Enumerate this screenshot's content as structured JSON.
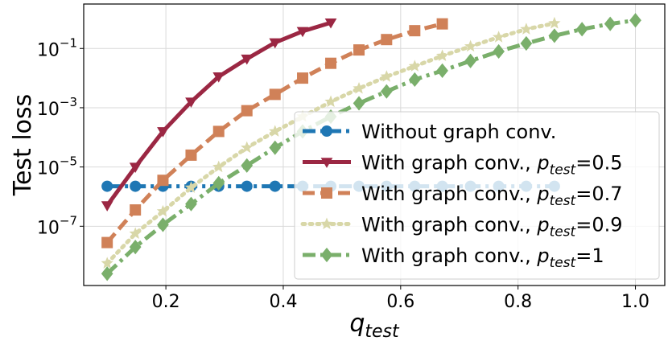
{
  "chart_data": {
    "type": "line",
    "title": "",
    "xlabel_base": "q",
    "xlabel_sub": "test",
    "ylabel": "Test loss",
    "xlim": [
      0.06,
      1.05
    ],
    "ylim_log10": [
      -9.0,
      0.5
    ],
    "yscale": "log",
    "grid": true,
    "legend_position": "lower-right",
    "x_ticks": [
      {
        "value": 0.2,
        "label": "0.2"
      },
      {
        "value": 0.4,
        "label": "0.4"
      },
      {
        "value": 0.6,
        "label": "0.6"
      },
      {
        "value": 0.8,
        "label": "0.8"
      },
      {
        "value": 1.0,
        "label": "1.0"
      }
    ],
    "y_ticks": [
      {
        "exp": -1,
        "base": "10",
        "sup": "−1"
      },
      {
        "exp": -3,
        "base": "10",
        "sup": "−3"
      },
      {
        "exp": -5,
        "base": "10",
        "sup": "−5"
      },
      {
        "exp": -7,
        "base": "10",
        "sup": "−7"
      }
    ],
    "series": [
      {
        "name": "Without graph conv.",
        "legend_prefix": "Without graph conv.",
        "legend_sub": "",
        "legend_suffix": "",
        "color": "#1f77b4",
        "dash": "dashdot",
        "marker": "circle",
        "x": [
          0.1,
          0.148,
          0.195,
          0.243,
          0.29,
          0.338,
          0.386,
          0.433,
          0.481,
          0.529,
          0.576,
          0.624,
          0.671,
          0.719,
          0.767,
          0.814,
          0.862
        ],
        "log10_y": [
          -5.65,
          -5.65,
          -5.65,
          -5.65,
          -5.65,
          -5.65,
          -5.65,
          -5.65,
          -5.65,
          -5.65,
          -5.65,
          -5.65,
          -5.65,
          -5.65,
          -5.65,
          -5.65,
          -5.65
        ]
      },
      {
        "name": "With graph conv., p_test=0.5",
        "legend_prefix": "With graph conv., p",
        "legend_sub": "test",
        "legend_suffix": "=0.5",
        "color": "#9b2743",
        "dash": "solid",
        "marker": "triangle-down",
        "x": [
          0.1,
          0.148,
          0.195,
          0.243,
          0.29,
          0.338,
          0.386,
          0.433,
          0.481
        ],
        "log10_y": [
          -6.3,
          -5.0,
          -3.8,
          -2.8,
          -1.95,
          -1.35,
          -0.8,
          -0.42,
          -0.13
        ]
      },
      {
        "name": "With graph conv., p_test=0.7",
        "legend_prefix": "With graph conv., p",
        "legend_sub": "test",
        "legend_suffix": "=0.7",
        "color": "#d08158",
        "dash": "dashed",
        "marker": "square",
        "x": [
          0.1,
          0.148,
          0.195,
          0.243,
          0.29,
          0.338,
          0.386,
          0.433,
          0.481,
          0.529,
          0.576,
          0.624,
          0.671
        ],
        "log10_y": [
          -7.55,
          -6.45,
          -5.45,
          -4.6,
          -3.8,
          -3.1,
          -2.55,
          -2.0,
          -1.5,
          -1.05,
          -0.7,
          -0.4,
          -0.17
        ]
      },
      {
        "name": "With graph conv., p_test=0.9",
        "legend_prefix": "With graph conv., p",
        "legend_sub": "test",
        "legend_suffix": "=0.9",
        "color": "#d8d7a8",
        "dash": "dotted",
        "marker": "star",
        "x": [
          0.1,
          0.148,
          0.195,
          0.243,
          0.29,
          0.338,
          0.386,
          0.433,
          0.481,
          0.529,
          0.576,
          0.624,
          0.671,
          0.719,
          0.767,
          0.814,
          0.862
        ],
        "log10_y": [
          -8.25,
          -7.25,
          -6.5,
          -5.7,
          -5.0,
          -4.35,
          -3.8,
          -3.3,
          -2.8,
          -2.35,
          -1.95,
          -1.6,
          -1.25,
          -0.93,
          -0.62,
          -0.35,
          -0.15
        ]
      },
      {
        "name": "With graph conv., p_test=1",
        "legend_prefix": "With graph conv., p",
        "legend_sub": "test",
        "legend_suffix": "=1",
        "color": "#7aaf6b",
        "dash": "dashdot",
        "marker": "diamond",
        "x": [
          0.1,
          0.148,
          0.195,
          0.243,
          0.29,
          0.338,
          0.386,
          0.433,
          0.481,
          0.529,
          0.576,
          0.624,
          0.671,
          0.719,
          0.767,
          0.814,
          0.862,
          0.909,
          0.957,
          1.0
        ],
        "log10_y": [
          -8.6,
          -7.7,
          -6.95,
          -6.25,
          -5.55,
          -4.95,
          -4.35,
          -3.8,
          -3.3,
          -2.85,
          -2.45,
          -2.05,
          -1.75,
          -1.42,
          -1.1,
          -0.83,
          -0.57,
          -0.35,
          -0.17,
          -0.05
        ]
      }
    ]
  }
}
